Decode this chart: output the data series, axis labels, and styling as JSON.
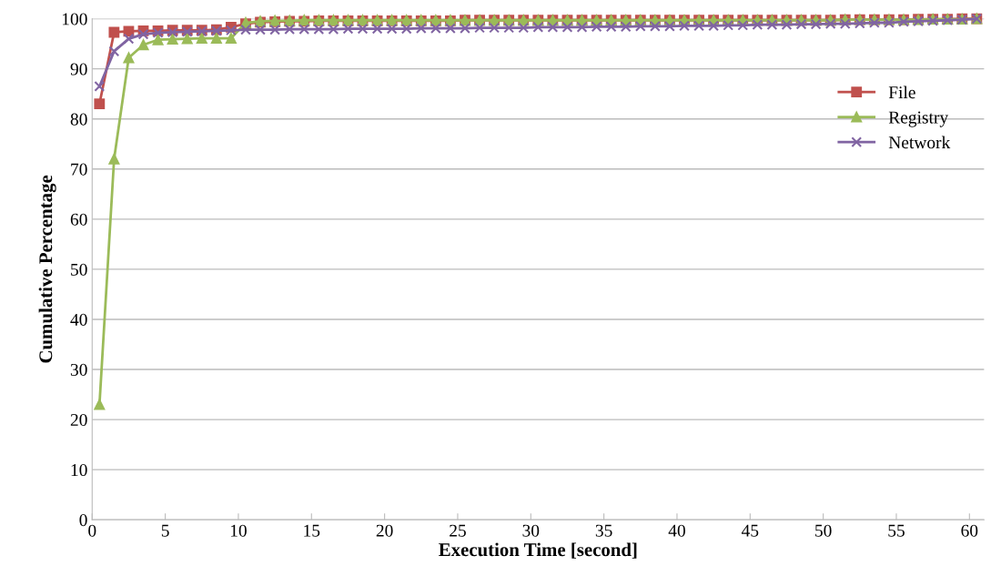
{
  "chart_data": {
    "type": "line",
    "xlabel": "Execution Time [second]",
    "ylabel": "Cumulative Percentage",
    "x": [
      0.5,
      1.5,
      2.5,
      3.5,
      4.5,
      5.5,
      6.5,
      7.5,
      8.5,
      9.5,
      10.5,
      11.5,
      12.5,
      13.5,
      14.5,
      15.5,
      16.5,
      17.5,
      18.5,
      19.5,
      20.5,
      21.5,
      22.5,
      23.5,
      24.5,
      25.5,
      26.5,
      27.5,
      28.5,
      29.5,
      30.5,
      31.5,
      32.5,
      33.5,
      34.5,
      35.5,
      36.5,
      37.5,
      38.5,
      39.5,
      40.5,
      41.5,
      42.5,
      43.5,
      44.5,
      45.5,
      46.5,
      47.5,
      48.5,
      49.5,
      50.5,
      51.5,
      52.5,
      53.5,
      54.5,
      55.5,
      56.5,
      57.5,
      58.5,
      59.5,
      60.5
    ],
    "series": [
      {
        "name": "File",
        "color": "#c0504d",
        "marker": "square",
        "values": [
          83.0,
          97.3,
          97.5,
          97.6,
          97.6,
          97.7,
          97.7,
          97.7,
          97.8,
          98.3,
          99.0,
          99.3,
          99.4,
          99.5,
          99.5,
          99.6,
          99.6,
          99.6,
          99.6,
          99.6,
          99.6,
          99.6,
          99.6,
          99.6,
          99.6,
          99.7,
          99.7,
          99.7,
          99.7,
          99.7,
          99.7,
          99.7,
          99.7,
          99.7,
          99.7,
          99.7,
          99.7,
          99.7,
          99.7,
          99.7,
          99.7,
          99.7,
          99.7,
          99.7,
          99.7,
          99.7,
          99.7,
          99.7,
          99.7,
          99.7,
          99.7,
          99.8,
          99.8,
          99.8,
          99.8,
          99.8,
          99.9,
          99.9,
          99.9,
          100.0,
          100.0
        ]
      },
      {
        "name": "Registry",
        "color": "#9bbb59",
        "marker": "triangle",
        "values": [
          23.0,
          72.0,
          92.2,
          94.8,
          95.8,
          95.9,
          96.0,
          96.1,
          96.1,
          96.1,
          99.2,
          99.5,
          99.6,
          99.6,
          99.7,
          99.7,
          99.7,
          99.7,
          99.7,
          99.7,
          99.7,
          99.7,
          99.7,
          99.7,
          99.7,
          99.7,
          99.7,
          99.7,
          99.7,
          99.7,
          99.7,
          99.7,
          99.7,
          99.7,
          99.7,
          99.7,
          99.7,
          99.7,
          99.7,
          99.7,
          99.7,
          99.7,
          99.7,
          99.7,
          99.7,
          99.7,
          99.7,
          99.7,
          99.7,
          99.7,
          99.7,
          99.8,
          99.8,
          99.8,
          99.8,
          99.8,
          99.8,
          99.9,
          99.9,
          99.9,
          100.0
        ]
      },
      {
        "name": "Network",
        "color": "#8064a2",
        "marker": "cross",
        "values": [
          86.5,
          93.5,
          96.0,
          96.9,
          97.2,
          97.3,
          97.4,
          97.5,
          97.6,
          97.7,
          97.8,
          97.8,
          97.8,
          97.9,
          97.9,
          97.9,
          97.9,
          98.0,
          98.0,
          98.0,
          98.0,
          98.0,
          98.1,
          98.1,
          98.1,
          98.1,
          98.2,
          98.2,
          98.2,
          98.2,
          98.3,
          98.3,
          98.3,
          98.3,
          98.4,
          98.4,
          98.4,
          98.5,
          98.5,
          98.5,
          98.6,
          98.6,
          98.6,
          98.7,
          98.7,
          98.8,
          98.8,
          98.8,
          98.9,
          98.9,
          99.0,
          99.0,
          99.1,
          99.2,
          99.2,
          99.4,
          99.5,
          99.6,
          99.7,
          99.8,
          100.0
        ]
      }
    ],
    "xlim": [
      0,
      61
    ],
    "xticks": [
      0,
      5,
      10,
      15,
      20,
      25,
      30,
      35,
      40,
      45,
      50,
      55,
      60
    ],
    "ylim": [
      0,
      100
    ],
    "yticks": [
      0,
      10,
      20,
      30,
      40,
      50,
      60,
      70,
      80,
      90,
      100
    ],
    "grid": "y",
    "legend": "right",
    "line_style": "solid"
  }
}
